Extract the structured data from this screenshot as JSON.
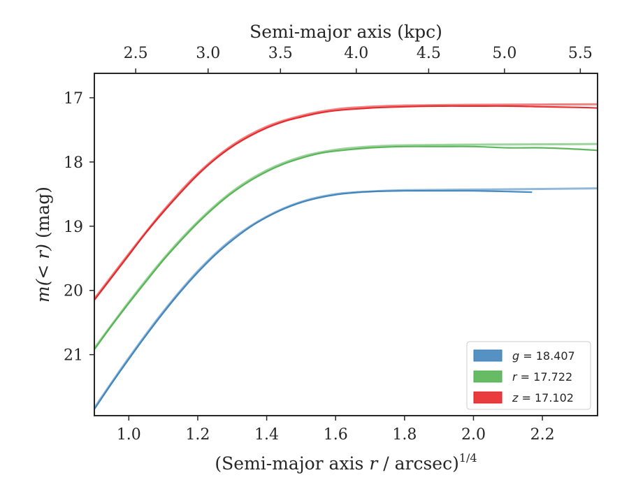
{
  "chart_data": {
    "type": "line",
    "xlabel": "(Semi-major axis r / arcsec)",
    "xlabel_prefix": "(Semi-major axis ",
    "xlabel_var": "r",
    "xlabel_suffix": " / arcsec)",
    "xlabel_sup": "1/4",
    "ylabel": "m(< r) (mag)",
    "ylabel_func": "m(< r)",
    "ylabel_unit": " (mag)",
    "top_xlabel": "Semi-major axis (kpc)",
    "xlim": [
      0.9,
      2.36
    ],
    "ylim": [
      21.95,
      16.62
    ],
    "y_inverted": true,
    "x_ticks": [
      "1.0",
      "1.2",
      "1.4",
      "1.6",
      "1.8",
      "2.0",
      "2.2"
    ],
    "y_ticks": [
      "17",
      "18",
      "19",
      "20",
      "21"
    ],
    "top_x_ticks": [
      "2.5",
      "3.0",
      "3.5",
      "4.0",
      "4.5",
      "5.0",
      "5.5"
    ],
    "top_x_tick_positions": [
      1.02,
      1.23,
      1.44,
      1.66,
      1.87,
      2.09,
      2.31
    ],
    "legend_position": "lower-right",
    "series": [
      {
        "name": "g = 18.407",
        "legend_var": "g",
        "legend_value": "18.407",
        "color": "#377eb8",
        "x": [
          0.9,
          0.95,
          1.0,
          1.05,
          1.1,
          1.15,
          1.2,
          1.25,
          1.3,
          1.35,
          1.4,
          1.45,
          1.5,
          1.55,
          1.6,
          1.65,
          1.7,
          1.8,
          1.9,
          2.0,
          2.1,
          2.17
        ],
        "values": [
          21.85,
          21.45,
          21.07,
          20.7,
          20.35,
          20.02,
          19.72,
          19.45,
          19.22,
          19.02,
          18.86,
          18.73,
          18.63,
          18.56,
          18.51,
          18.48,
          18.46,
          18.45,
          18.45,
          18.45,
          18.46,
          18.47
        ],
        "model_x": [
          0.9,
          1.0,
          1.1,
          1.2,
          1.3,
          1.4,
          1.5,
          1.6,
          1.7,
          1.8,
          2.0,
          2.2,
          2.36
        ],
        "model_values": [
          21.83,
          21.05,
          20.33,
          19.7,
          19.2,
          18.85,
          18.62,
          18.5,
          18.46,
          18.44,
          18.43,
          18.42,
          18.41
        ]
      },
      {
        "name": "r = 17.722",
        "legend_var": "r",
        "legend_value": "17.722",
        "color": "#4daf4a",
        "x": [
          0.9,
          0.95,
          1.0,
          1.05,
          1.1,
          1.15,
          1.2,
          1.25,
          1.3,
          1.35,
          1.4,
          1.45,
          1.5,
          1.55,
          1.6,
          1.7,
          1.8,
          1.9,
          2.0,
          2.1,
          2.2,
          2.3,
          2.36
        ],
        "values": [
          20.92,
          20.55,
          20.2,
          19.86,
          19.53,
          19.23,
          18.95,
          18.7,
          18.48,
          18.3,
          18.15,
          18.03,
          17.94,
          17.87,
          17.83,
          17.78,
          17.76,
          17.76,
          17.76,
          17.78,
          17.78,
          17.8,
          17.82
        ],
        "model_x": [
          0.9,
          1.0,
          1.1,
          1.2,
          1.3,
          1.4,
          1.5,
          1.6,
          1.7,
          1.8,
          2.0,
          2.2,
          2.36
        ],
        "model_values": [
          20.9,
          20.18,
          19.51,
          18.93,
          18.46,
          18.13,
          17.92,
          17.81,
          17.76,
          17.74,
          17.73,
          17.725,
          17.72
        ]
      },
      {
        "name": "z = 17.102",
        "legend_var": "z",
        "legend_value": "17.102",
        "color": "#e41a1c",
        "x": [
          0.9,
          0.95,
          1.0,
          1.05,
          1.1,
          1.15,
          1.2,
          1.25,
          1.3,
          1.35,
          1.4,
          1.45,
          1.5,
          1.55,
          1.6,
          1.7,
          1.8,
          1.9,
          2.0,
          2.1,
          2.2,
          2.3,
          2.36
        ],
        "values": [
          20.15,
          19.8,
          19.45,
          19.1,
          18.78,
          18.48,
          18.2,
          17.96,
          17.76,
          17.6,
          17.47,
          17.37,
          17.3,
          17.24,
          17.2,
          17.16,
          17.14,
          17.13,
          17.13,
          17.13,
          17.14,
          17.15,
          17.16
        ],
        "model_x": [
          0.9,
          1.0,
          1.1,
          1.2,
          1.3,
          1.4,
          1.5,
          1.6,
          1.7,
          1.8,
          2.0,
          2.2,
          2.36
        ],
        "model_values": [
          20.13,
          19.43,
          18.76,
          18.18,
          17.74,
          17.45,
          17.28,
          17.18,
          17.14,
          17.12,
          17.11,
          17.105,
          17.102
        ]
      }
    ]
  }
}
